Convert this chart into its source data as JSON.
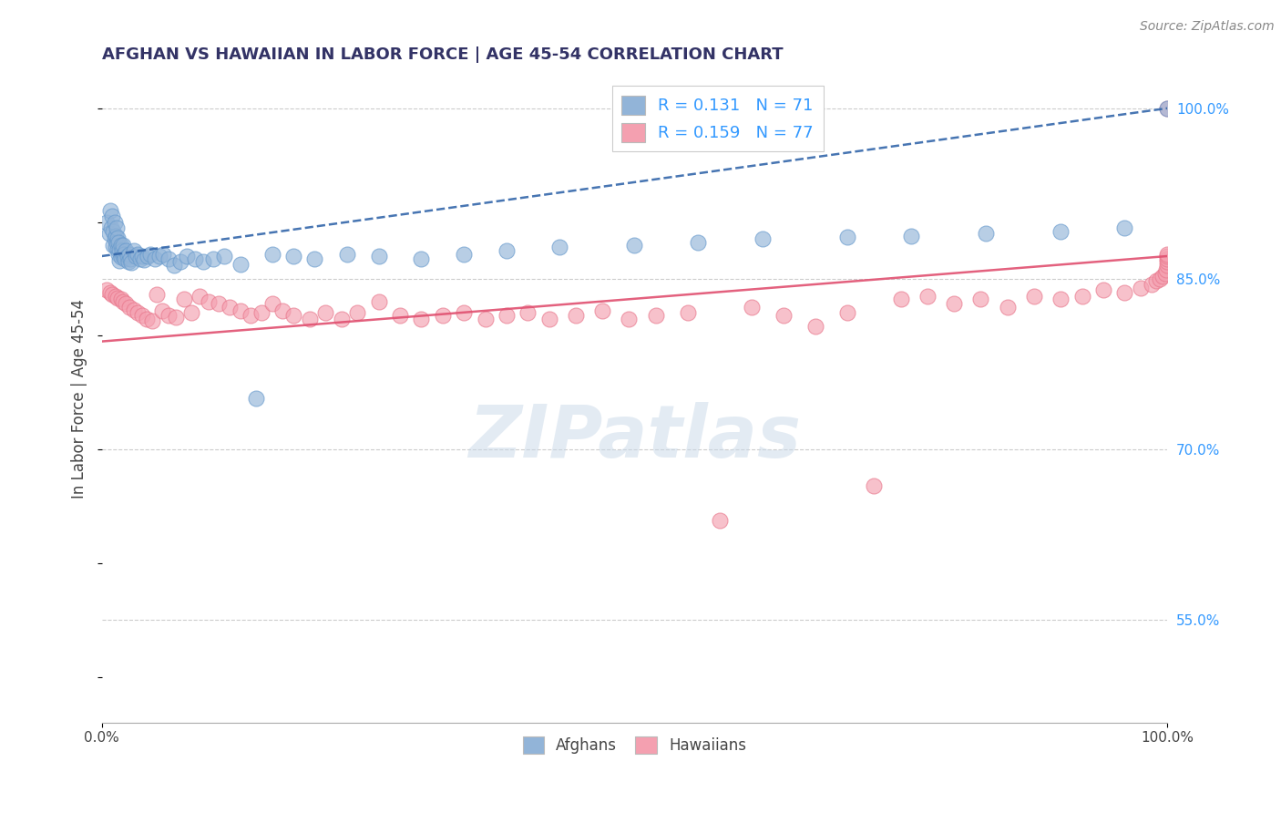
{
  "title": "AFGHAN VS HAWAIIAN IN LABOR FORCE | AGE 45-54 CORRELATION CHART",
  "source_text": "Source: ZipAtlas.com",
  "ylabel": "In Labor Force | Age 45-54",
  "xlim": [
    0.0,
    1.0
  ],
  "ylim": [
    0.46,
    1.03
  ],
  "right_yticks": [
    0.55,
    0.7,
    0.85,
    1.0
  ],
  "right_yticklabels": [
    "55.0%",
    "70.0%",
    "85.0%",
    "100.0%"
  ],
  "xticklabels": [
    "0.0%",
    "100.0%"
  ],
  "legend_line1": "R = 0.131   N = 71",
  "legend_line2": "R = 0.159   N = 77",
  "afghan_color": "#92b4d8",
  "afghan_edge_color": "#6699CC",
  "hawaiian_color": "#f4a0b0",
  "hawaiian_edge_color": "#e8758a",
  "afghan_line_color": "#3366AA",
  "afghan_line_style": "--",
  "hawaiian_line_color": "#e05070",
  "hawaiian_line_style": "-",
  "watermark_text": "ZIPatlas",
  "watermark_color": "#c8d8e8",
  "bottom_legend_labels": [
    "Afghans",
    "Hawaiians"
  ],
  "afghan_x": [
    0.005,
    0.007,
    0.008,
    0.009,
    0.01,
    0.011,
    0.011,
    0.012,
    0.012,
    0.013,
    0.013,
    0.014,
    0.014,
    0.015,
    0.015,
    0.016,
    0.016,
    0.017,
    0.017,
    0.018,
    0.018,
    0.019,
    0.02,
    0.02,
    0.021,
    0.022,
    0.023,
    0.024,
    0.025,
    0.026,
    0.027,
    0.028,
    0.03,
    0.032,
    0.034,
    0.036,
    0.038,
    0.04,
    0.043,
    0.046,
    0.05,
    0.054,
    0.058,
    0.063,
    0.068,
    0.074,
    0.08,
    0.088,
    0.095,
    0.105,
    0.115,
    0.13,
    0.145,
    0.16,
    0.18,
    0.2,
    0.23,
    0.26,
    0.3,
    0.34,
    0.38,
    0.43,
    0.5,
    0.56,
    0.62,
    0.7,
    0.76,
    0.83,
    0.9,
    0.96,
    1.0
  ],
  "afghan_y": [
    0.9,
    0.89,
    0.91,
    0.895,
    0.905,
    0.88,
    0.892,
    0.885,
    0.9,
    0.878,
    0.888,
    0.882,
    0.895,
    0.876,
    0.886,
    0.872,
    0.882,
    0.866,
    0.876,
    0.869,
    0.88,
    0.875,
    0.87,
    0.88,
    0.872,
    0.868,
    0.875,
    0.87,
    0.865,
    0.872,
    0.868,
    0.864,
    0.875,
    0.87,
    0.872,
    0.868,
    0.87,
    0.867,
    0.87,
    0.872,
    0.868,
    0.87,
    0.872,
    0.868,
    0.862,
    0.865,
    0.87,
    0.868,
    0.865,
    0.868,
    0.87,
    0.863,
    0.745,
    0.872,
    0.87,
    0.868,
    0.872,
    0.87,
    0.868,
    0.872,
    0.875,
    0.878,
    0.88,
    0.882,
    0.885,
    0.887,
    0.888,
    0.89,
    0.892,
    0.895,
    1.0
  ],
  "hawaiian_x": [
    0.005,
    0.008,
    0.01,
    0.013,
    0.015,
    0.018,
    0.02,
    0.023,
    0.026,
    0.03,
    0.034,
    0.038,
    0.042,
    0.047,
    0.052,
    0.057,
    0.063,
    0.07,
    0.077,
    0.084,
    0.092,
    0.1,
    0.11,
    0.12,
    0.13,
    0.14,
    0.15,
    0.16,
    0.17,
    0.18,
    0.195,
    0.21,
    0.225,
    0.24,
    0.26,
    0.28,
    0.3,
    0.32,
    0.34,
    0.36,
    0.38,
    0.4,
    0.42,
    0.445,
    0.47,
    0.495,
    0.52,
    0.55,
    0.58,
    0.61,
    0.64,
    0.67,
    0.7,
    0.725,
    0.75,
    0.775,
    0.8,
    0.825,
    0.85,
    0.875,
    0.9,
    0.92,
    0.94,
    0.96,
    0.975,
    0.985,
    0.99,
    0.993,
    0.996,
    0.998,
    0.999,
    1.0,
    1.0,
    1.0,
    1.0,
    1.0,
    1.0
  ],
  "hawaiian_y": [
    0.84,
    0.838,
    0.836,
    0.835,
    0.833,
    0.832,
    0.83,
    0.828,
    0.825,
    0.823,
    0.82,
    0.818,
    0.815,
    0.813,
    0.836,
    0.822,
    0.818,
    0.816,
    0.832,
    0.82,
    0.835,
    0.83,
    0.828,
    0.825,
    0.822,
    0.818,
    0.82,
    0.828,
    0.822,
    0.818,
    0.815,
    0.82,
    0.815,
    0.82,
    0.83,
    0.818,
    0.815,
    0.818,
    0.82,
    0.815,
    0.818,
    0.82,
    0.815,
    0.818,
    0.822,
    0.815,
    0.818,
    0.82,
    0.638,
    0.825,
    0.818,
    0.808,
    0.82,
    0.668,
    0.832,
    0.835,
    0.828,
    0.832,
    0.825,
    0.835,
    0.832,
    0.835,
    0.84,
    0.838,
    0.842,
    0.845,
    0.848,
    0.85,
    0.852,
    0.855,
    0.858,
    0.862,
    0.865,
    0.868,
    0.87,
    0.872,
    1.0
  ],
  "afghan_trend_x0": 0.0,
  "afghan_trend_y0": 0.87,
  "afghan_trend_x1": 1.0,
  "afghan_trend_y1": 1.0,
  "hawaiian_trend_x0": 0.0,
  "hawaiian_trend_y0": 0.795,
  "hawaiian_trend_x1": 1.0,
  "hawaiian_trend_y1": 0.87
}
